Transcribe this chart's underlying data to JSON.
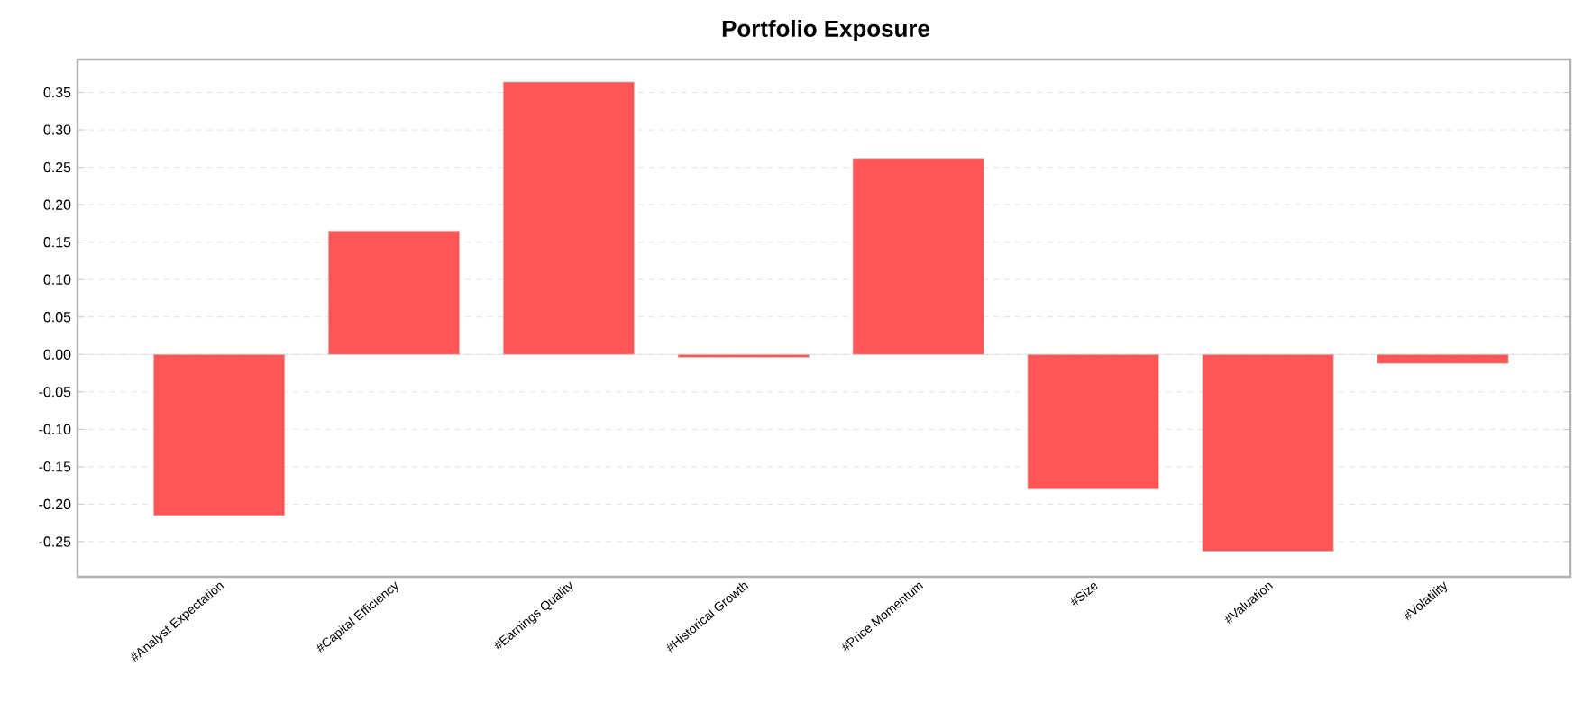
{
  "chart_data": {
    "type": "bar",
    "title": "Portfolio Exposure",
    "categories": [
      "#Analyst Expectation",
      "#Capital Efficiency",
      "#Earnings Quality",
      "#Historical Growth",
      "#Price Momentum",
      "#Size",
      "#Valuation",
      "#Volatility"
    ],
    "values": [
      -0.215,
      0.165,
      0.364,
      -0.004,
      0.262,
      -0.18,
      -0.263,
      -0.012
    ],
    "color": "#ff5555",
    "ylim": [
      -0.297,
      0.394
    ],
    "yticks": [
      {
        "value": -0.25,
        "label": "-0.25"
      },
      {
        "value": -0.2,
        "label": "-0.20"
      },
      {
        "value": -0.15,
        "label": "-0.15"
      },
      {
        "value": -0.1,
        "label": "-0.10"
      },
      {
        "value": -0.05,
        "label": "-0.05"
      },
      {
        "value": 0,
        "label": "0.00"
      },
      {
        "value": 0.05,
        "label": "0.05"
      },
      {
        "value": 0.1,
        "label": "0.10"
      },
      {
        "value": 0.15,
        "label": "0.15"
      },
      {
        "value": 0.2,
        "label": "0.20"
      },
      {
        "value": 0.25,
        "label": "0.25"
      },
      {
        "value": 0.3,
        "label": "0.30"
      },
      {
        "value": 0.35,
        "label": "0.35"
      }
    ],
    "grid": "y"
  }
}
